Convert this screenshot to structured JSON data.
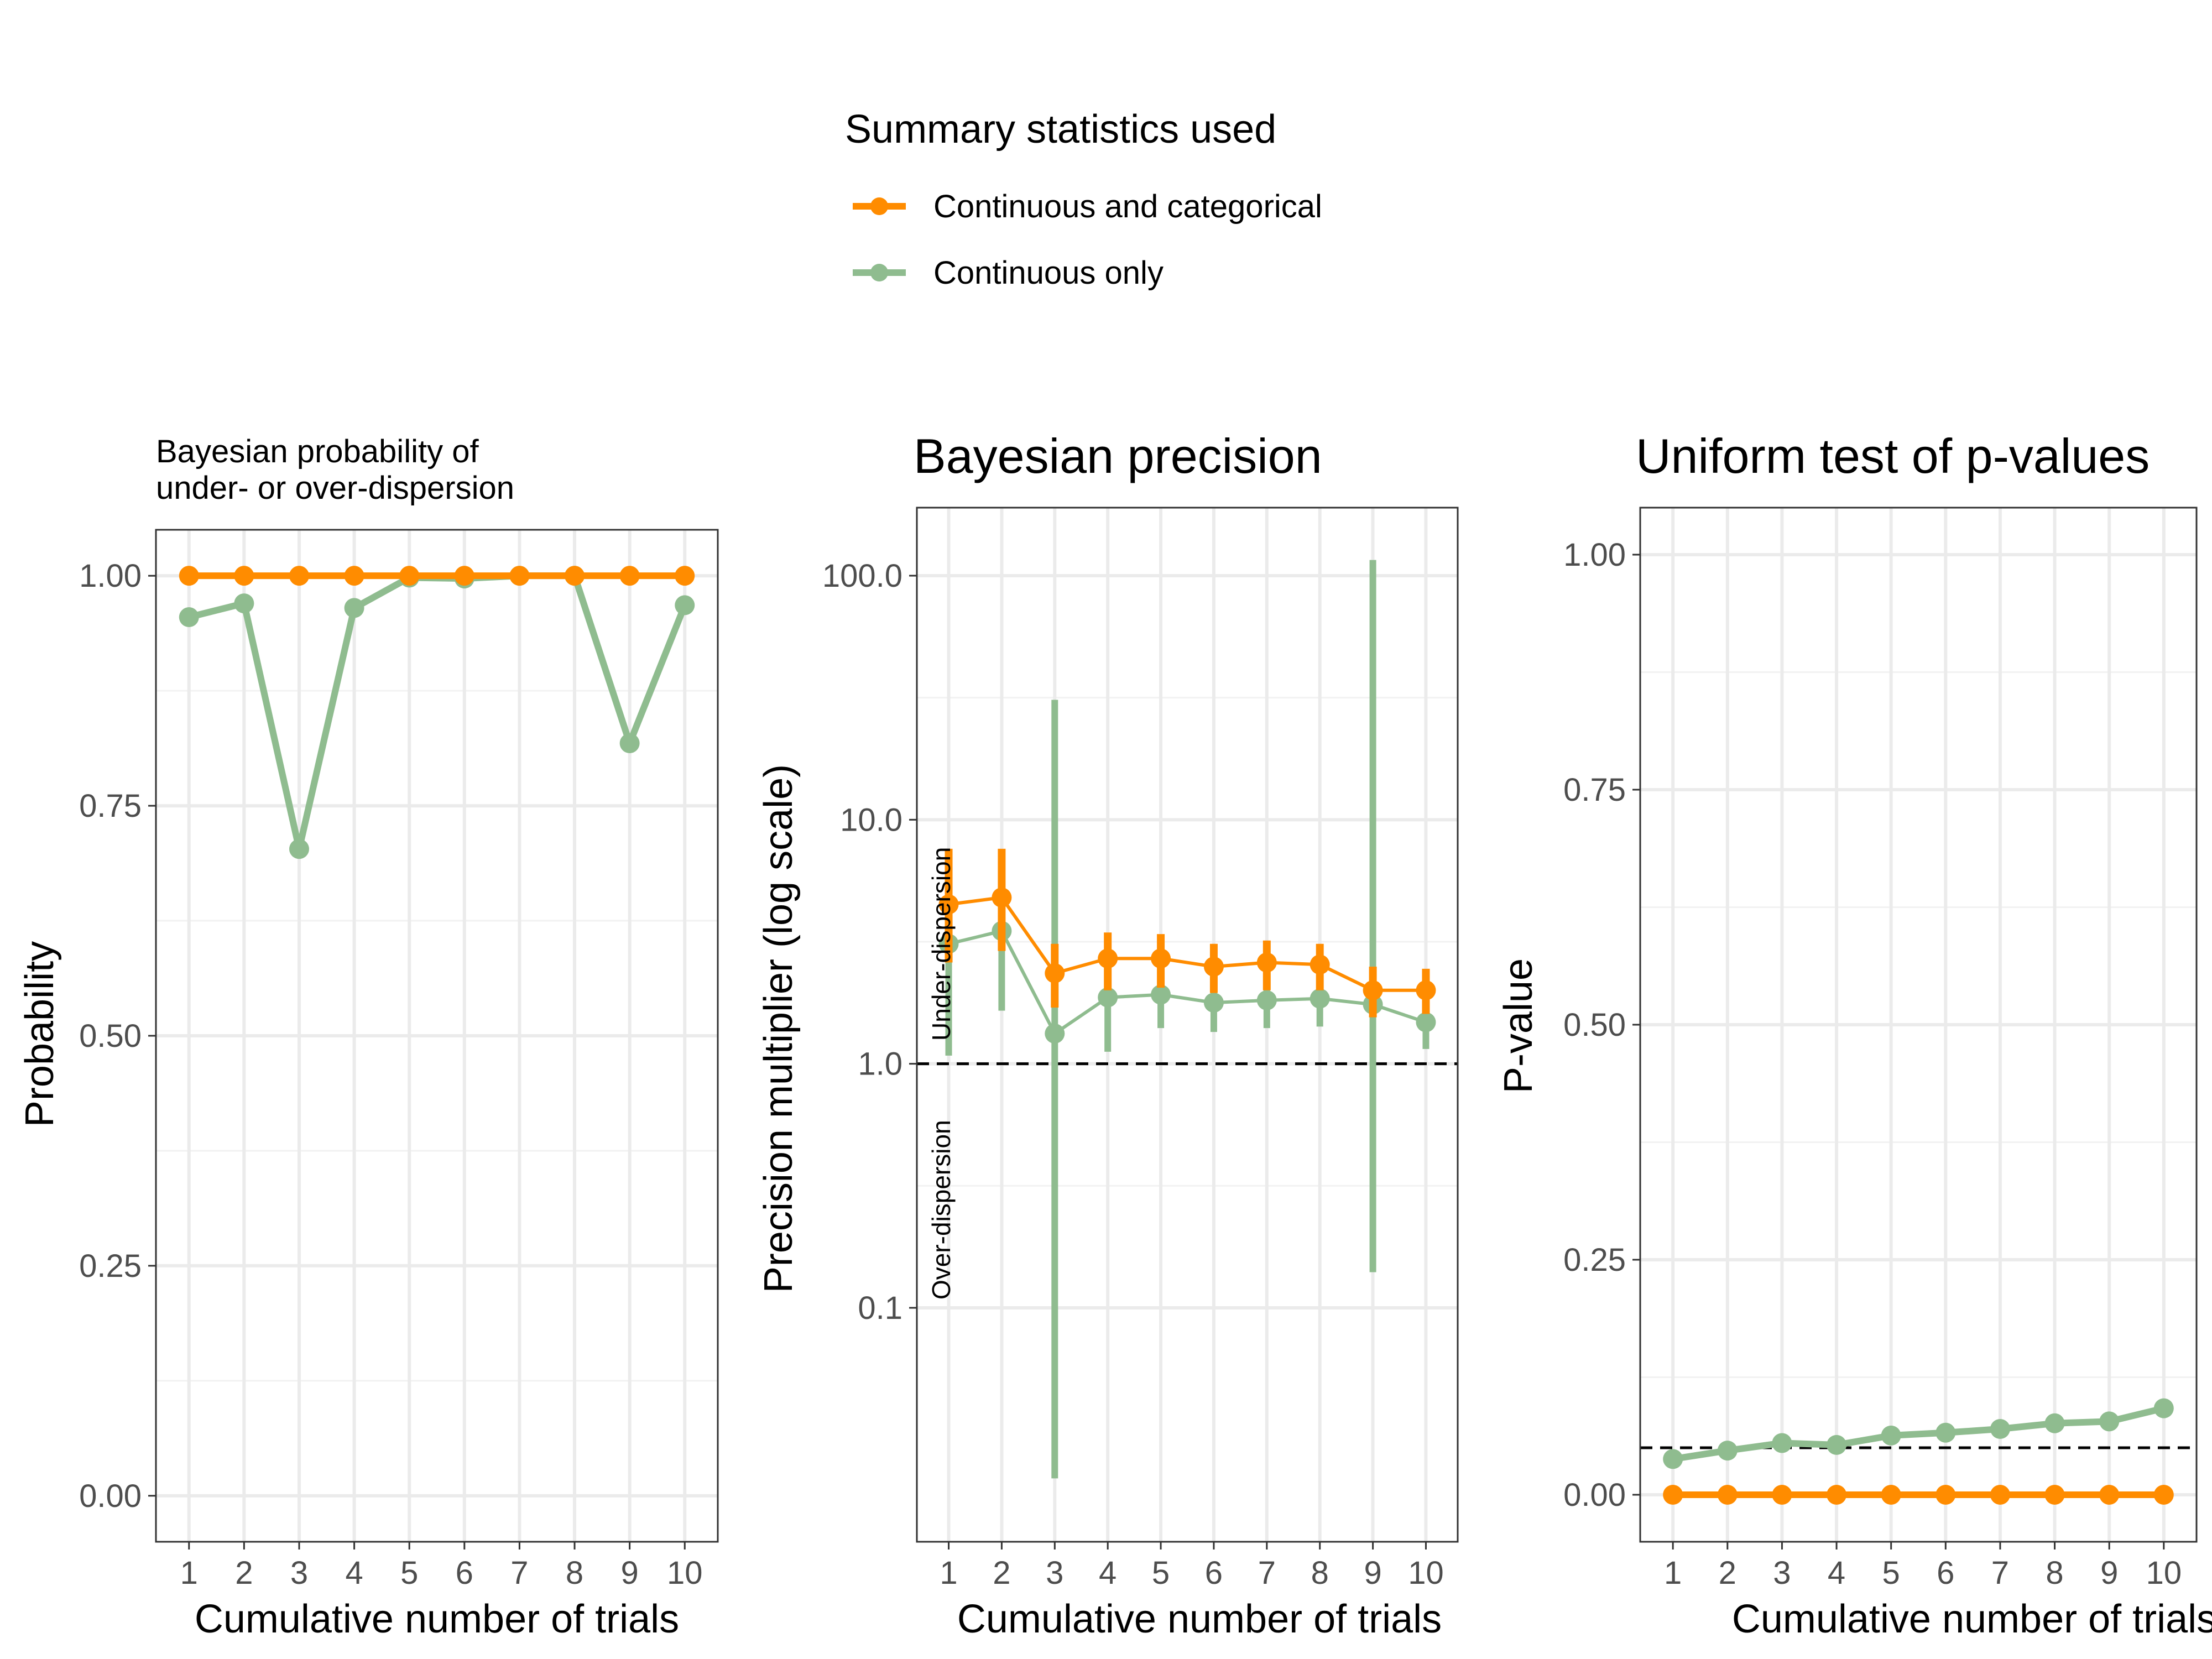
{
  "colors": {
    "orange": "#FF8C00",
    "green": "#8FBC8F",
    "grid": "#EBEBEB",
    "axis": "#333333",
    "tick_text": "#4D4D4D",
    "text": "#000000"
  },
  "legend": {
    "title": "Summary statistics used",
    "items": [
      {
        "label": "Continuous and categorical",
        "color": "#FF8C00"
      },
      {
        "label": "Continuous only",
        "color": "#8FBC8F"
      }
    ]
  },
  "chart_data": [
    {
      "type": "line",
      "title": "Bayesian probability of\nunder- or over-dispersion",
      "title_lines": [
        "Bayesian probability of",
        "under- or over-dispersion"
      ],
      "xlabel": "Cumulative number of trials",
      "ylabel": "Probability",
      "x": [
        1,
        2,
        3,
        4,
        5,
        6,
        7,
        8,
        9,
        10
      ],
      "xticks": [
        "1",
        "2",
        "3",
        "4",
        "5",
        "6",
        "7",
        "8",
        "9",
        "10"
      ],
      "ylim": [
        -0.05,
        1.05
      ],
      "yticks": [
        0,
        0.25,
        0.5,
        0.75,
        1.0
      ],
      "ytick_labels": [
        "0.00",
        "0.25",
        "0.50",
        "0.75",
        "1.00"
      ],
      "grid": true,
      "series": [
        {
          "name": "Continuous and categorical",
          "color": "#FF8C00",
          "values": [
            1.0,
            1.0,
            1.0,
            1.0,
            1.0,
            1.0,
            1.0,
            1.0,
            1.0,
            1.0
          ]
        },
        {
          "name": "Continuous only",
          "color": "#8FBC8F",
          "values": [
            0.955,
            0.97,
            0.703,
            0.965,
            0.998,
            0.997,
            1.0,
            1.0,
            0.818,
            0.968
          ]
        }
      ]
    },
    {
      "type": "line",
      "title": "Bayesian precision",
      "xlabel": "Cumulative number of trials",
      "ylabel": "Precision multiplier (log scale)",
      "yscale": "log",
      "x": [
        1,
        2,
        3,
        4,
        5,
        6,
        7,
        8,
        9,
        10
      ],
      "xticks": [
        "1",
        "2",
        "3",
        "4",
        "5",
        "6",
        "7",
        "8",
        "9",
        "10"
      ],
      "ylim": [
        0.011,
        190
      ],
      "yticks": [
        0.1,
        1,
        10,
        100
      ],
      "ytick_labels": [
        "0.1",
        "1.0",
        "10.0",
        "100.0"
      ],
      "reference_line": 1.0,
      "annotations": [
        "Under-dispersion",
        "Over-dispersion"
      ],
      "grid": true,
      "series": [
        {
          "name": "Continuous and categorical",
          "color": "#FF8C00",
          "values": [
            4.5,
            4.8,
            2.35,
            2.7,
            2.7,
            2.5,
            2.6,
            2.55,
            2.0,
            2.0
          ],
          "lower": [
            2.6,
            2.9,
            1.7,
            2.0,
            2.05,
            1.95,
            2.0,
            2.0,
            1.55,
            1.6
          ],
          "upper": [
            7.6,
            7.6,
            3.1,
            3.45,
            3.4,
            3.1,
            3.2,
            3.1,
            2.5,
            2.45
          ]
        },
        {
          "name": "Continuous only",
          "color": "#8FBC8F",
          "values": [
            3.1,
            3.5,
            1.33,
            1.87,
            1.92,
            1.78,
            1.82,
            1.85,
            1.75,
            1.48
          ],
          "lower": [
            1.08,
            1.65,
            0.02,
            1.12,
            1.4,
            1.35,
            1.4,
            1.42,
            0.14,
            1.15
          ],
          "upper": [
            6.3,
            7.0,
            31,
            2.55,
            2.6,
            2.35,
            2.4,
            2.35,
            116,
            1.9
          ]
        }
      ]
    },
    {
      "type": "line",
      "title": "Uniform test of p-values",
      "xlabel": "Cumulative number of trials",
      "ylabel": "P-value",
      "x": [
        1,
        2,
        3,
        4,
        5,
        6,
        7,
        8,
        9,
        10
      ],
      "xticks": [
        "1",
        "2",
        "3",
        "4",
        "5",
        "6",
        "7",
        "8",
        "9",
        "10"
      ],
      "ylim": [
        -0.05,
        1.05
      ],
      "yticks": [
        0,
        0.25,
        0.5,
        0.75,
        1.0
      ],
      "ytick_labels": [
        "0.00",
        "0.25",
        "0.50",
        "0.75",
        "1.00"
      ],
      "reference_line": 0.05,
      "grid": true,
      "series": [
        {
          "name": "Continuous and categorical",
          "color": "#FF8C00",
          "values": [
            0,
            0,
            0,
            0,
            0,
            0,
            0,
            0,
            0,
            0
          ]
        },
        {
          "name": "Continuous only",
          "color": "#8FBC8F",
          "values": [
            0.038,
            0.047,
            0.055,
            0.053,
            0.063,
            0.066,
            0.07,
            0.076,
            0.078,
            0.092
          ]
        }
      ]
    }
  ]
}
